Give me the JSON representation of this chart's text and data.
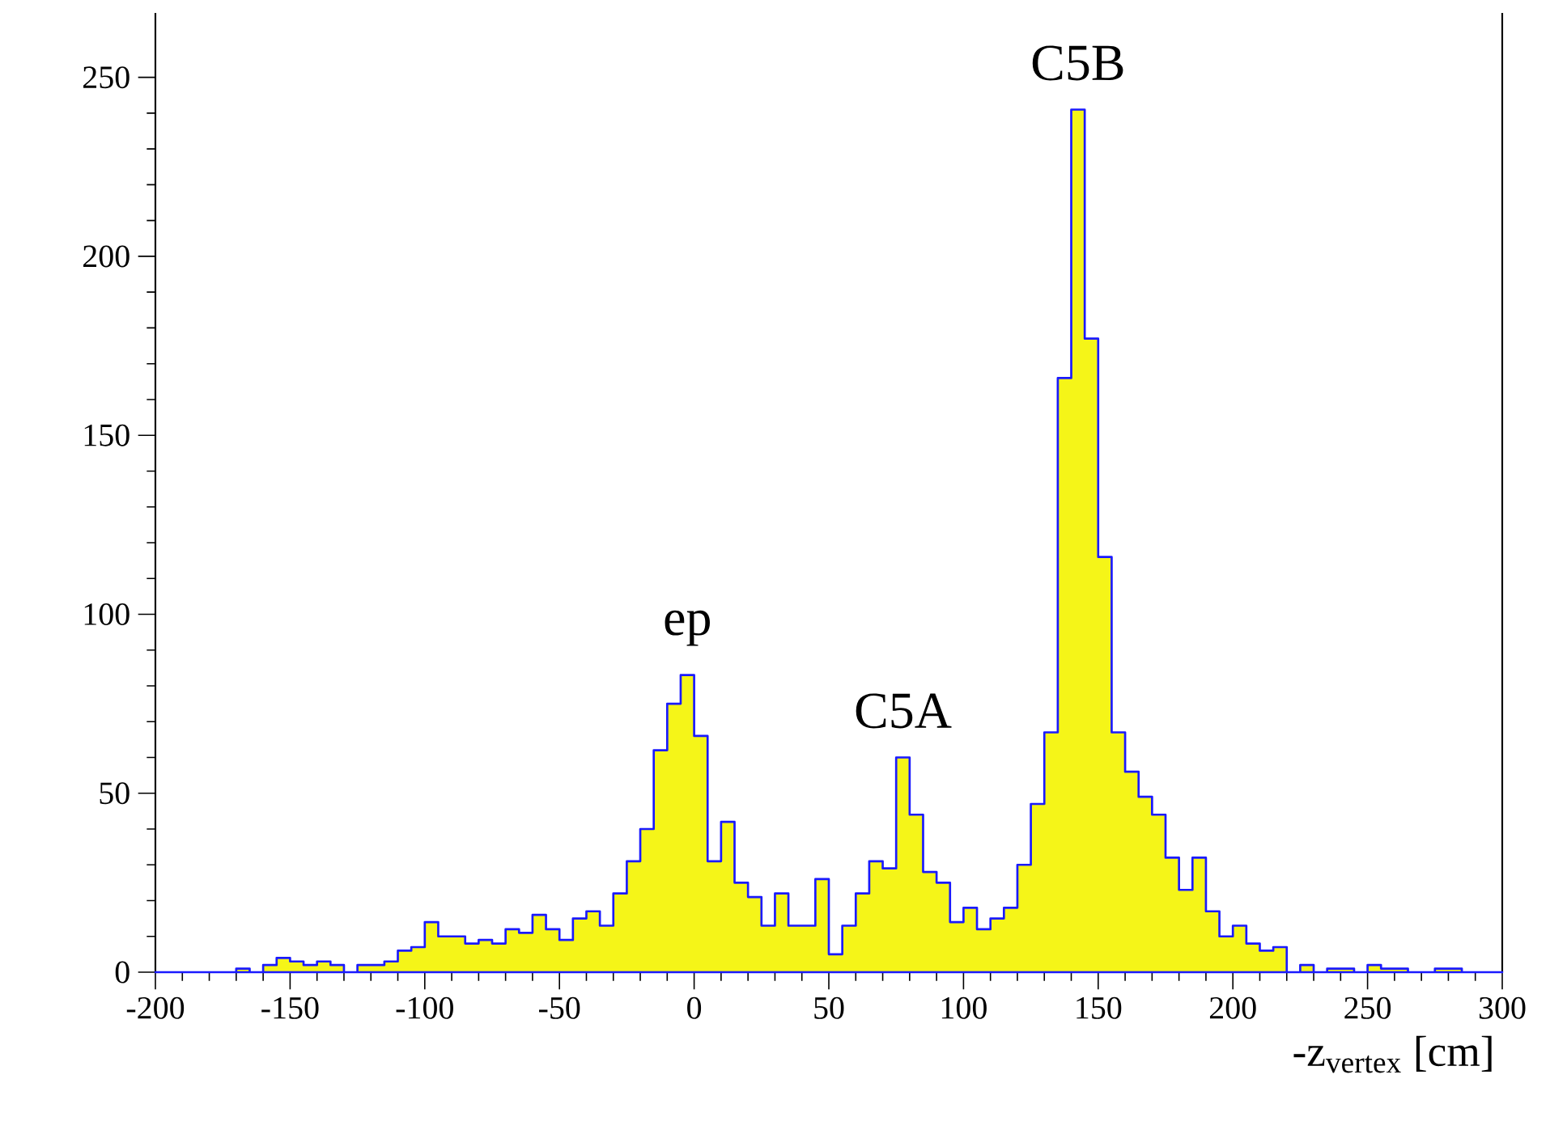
{
  "chart_data": {
    "type": "histogram",
    "xlabel": "-z$_{vertex}$ [cm]",
    "bins": [
      -200,
      -195,
      -190,
      -185,
      -180,
      -175,
      -170,
      -165,
      -160,
      -155,
      -150,
      -145,
      -140,
      -135,
      -130,
      -125,
      -120,
      -115,
      -110,
      -105,
      -100,
      -95,
      -90,
      -85,
      -80,
      -75,
      -70,
      -65,
      -60,
      -55,
      -50,
      -45,
      -40,
      -35,
      -30,
      -25,
      -20,
      -15,
      -10,
      -5,
      0,
      5,
      10,
      15,
      20,
      25,
      30,
      35,
      40,
      45,
      50,
      55,
      60,
      65,
      70,
      75,
      80,
      85,
      90,
      95,
      100,
      105,
      110,
      115,
      120,
      125,
      130,
      135,
      140,
      145,
      150,
      155,
      160,
      165,
      170,
      175,
      180,
      185,
      190,
      195,
      200,
      205,
      210,
      215,
      220,
      225,
      230,
      235,
      240,
      245,
      250,
      255,
      260,
      265,
      270,
      275,
      280,
      285,
      290,
      295,
      300
    ],
    "values": [
      0,
      0,
      0,
      0,
      0,
      0,
      1,
      0,
      2,
      4,
      3,
      2,
      3,
      2,
      0,
      2,
      2,
      3,
      6,
      7,
      14,
      10,
      10,
      8,
      9,
      8,
      12,
      11,
      16,
      12,
      9,
      15,
      17,
      13,
      22,
      31,
      40,
      62,
      75,
      83,
      66,
      31,
      42,
      25,
      21,
      13,
      22,
      13,
      13,
      26,
      5,
      13,
      22,
      31,
      29,
      60,
      44,
      28,
      25,
      14,
      18,
      12,
      15,
      18,
      30,
      47,
      67,
      166,
      241,
      177,
      116,
      67,
      56,
      49,
      44,
      32,
      23,
      32,
      17,
      10,
      13,
      8,
      6,
      7,
      0,
      2,
      0,
      1,
      1,
      0,
      2,
      1,
      1,
      0,
      0,
      1,
      1,
      0,
      0,
      0
    ],
    "color": "#f5f518",
    "xlim": [
      -200,
      300
    ],
    "ylim": [
      0,
      268
    ],
    "xticks": [
      -200,
      -150,
      -100,
      -50,
      0,
      50,
      100,
      150,
      200,
      250,
      300
    ],
    "yticks": [
      0,
      50,
      100,
      150,
      200,
      250
    ],
    "annotations": [
      "ep",
      "C5A",
      "C5B"
    ]
  }
}
